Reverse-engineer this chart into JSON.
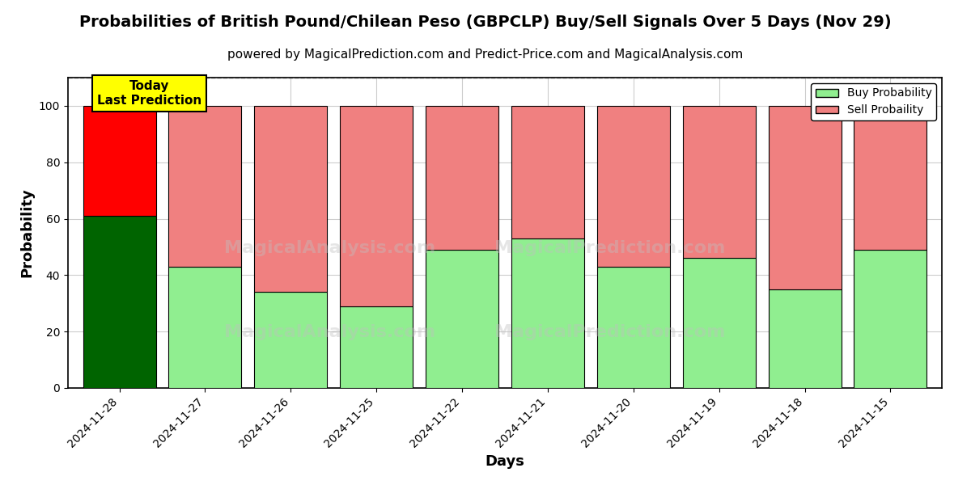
{
  "title": "Probabilities of British Pound/Chilean Peso (GBPCLP) Buy/Sell Signals Over 5 Days (Nov 29)",
  "subtitle": "powered by MagicalPrediction.com and Predict-Price.com and MagicalAnalysis.com",
  "xlabel": "Days",
  "ylabel": "Probability",
  "categories": [
    "2024-11-28",
    "2024-11-27",
    "2024-11-26",
    "2024-11-25",
    "2024-11-22",
    "2024-11-21",
    "2024-11-20",
    "2024-11-19",
    "2024-11-18",
    "2024-11-15"
  ],
  "buy_values": [
    61,
    43,
    34,
    29,
    49,
    53,
    43,
    46,
    35,
    49
  ],
  "sell_values": [
    39,
    57,
    66,
    71,
    51,
    47,
    57,
    54,
    65,
    51
  ],
  "today_buy_color": "#006400",
  "today_sell_color": "#ff0000",
  "buy_color": "#90EE90",
  "sell_color": "#F08080",
  "bar_edge_color": "#000000",
  "ylim": [
    0,
    110
  ],
  "dashed_line_y": 110,
  "today_label_bg": "#ffff00",
  "today_label_text": "Today\nLast Prediction",
  "legend_buy": "Buy Probability",
  "legend_sell": "Sell Probaility",
  "grid_color": "#cccccc",
  "background_color": "#ffffff",
  "title_fontsize": 14,
  "subtitle_fontsize": 11,
  "axis_label_fontsize": 13,
  "tick_fontsize": 10
}
